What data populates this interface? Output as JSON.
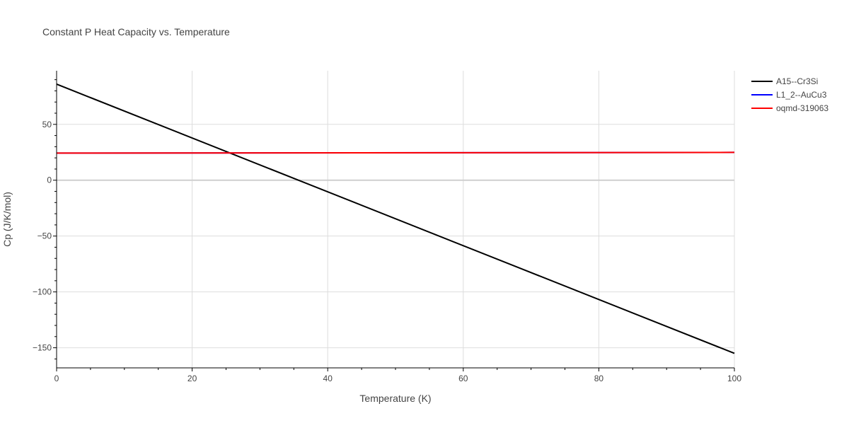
{
  "chart_data": {
    "type": "line",
    "title": "Constant P Heat Capacity vs. Temperature",
    "xlabel": "Temperature (K)",
    "ylabel": "Cp (J/K/mol)",
    "xlim": [
      0,
      100
    ],
    "ylim": [
      -168,
      98
    ],
    "x_ticks": [
      0,
      20,
      40,
      60,
      80,
      100
    ],
    "x_tick_labels": [
      "0",
      "20",
      "40",
      "60",
      "80",
      "100"
    ],
    "y_ticks": [
      50,
      0,
      -50,
      -100,
      -150
    ],
    "y_tick_labels": [
      "50",
      "0",
      "−50",
      "−100",
      "−150"
    ],
    "grid": true,
    "legend_position": "top-right",
    "series": [
      {
        "name": "A15--Cr3Si",
        "color": "#000000",
        "x": [
          0,
          100
        ],
        "y": [
          86,
          -155
        ]
      },
      {
        "name": "L1_2--AuCu3",
        "color": "#0000ff",
        "x": [
          0,
          100
        ],
        "y": [
          24.3,
          24.9
        ]
      },
      {
        "name": "oqmd-319063",
        "color": "#ff0000",
        "x": [
          0,
          100
        ],
        "y": [
          24.3,
          24.9
        ]
      }
    ]
  }
}
